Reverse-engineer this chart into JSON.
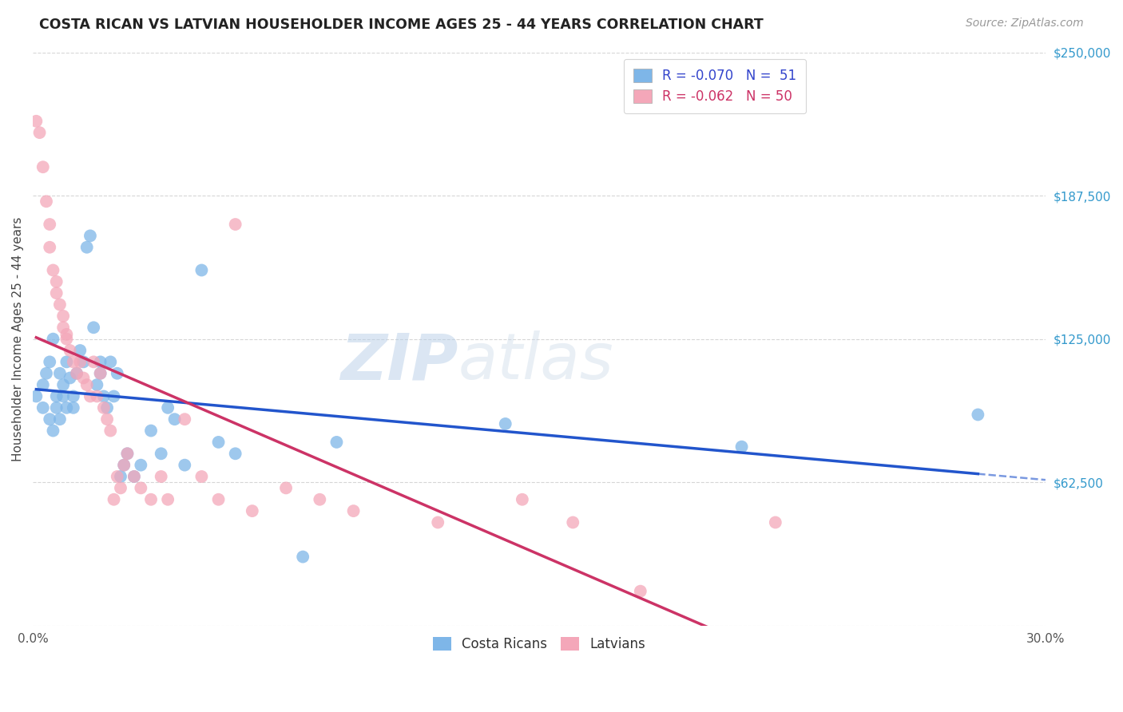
{
  "title": "COSTA RICAN VS LATVIAN HOUSEHOLDER INCOME AGES 25 - 44 YEARS CORRELATION CHART",
  "source": "Source: ZipAtlas.com",
  "ylabel": "Householder Income Ages 25 - 44 years",
  "xlim": [
    0.0,
    0.3
  ],
  "ylim": [
    0,
    250000
  ],
  "yticks": [
    0,
    62500,
    125000,
    187500,
    250000
  ],
  "ytick_labels": [
    "",
    "$62,500",
    "$125,000",
    "$187,500",
    "$250,000"
  ],
  "xticks": [
    0.0,
    0.05,
    0.1,
    0.15,
    0.2,
    0.25,
    0.3
  ],
  "xtick_labels": [
    "0.0%",
    "",
    "",
    "",
    "",
    "",
    "30.0%"
  ],
  "background_color": "#ffffff",
  "grid_color": "#cccccc",
  "costa_rican_color": "#7eb6e8",
  "latvian_color": "#f4a7b9",
  "costa_rican_line_color": "#2255cc",
  "latvian_line_color": "#cc3366",
  "legend_r_costa": "R = -0.070",
  "legend_n_costa": "N =  51",
  "legend_r_latvian": "R = -0.062",
  "legend_n_latvian": "N = 50",
  "watermark_zip": "ZIP",
  "watermark_atlas": "atlas",
  "costa_rican_x": [
    0.001,
    0.003,
    0.003,
    0.004,
    0.005,
    0.005,
    0.006,
    0.006,
    0.007,
    0.007,
    0.008,
    0.008,
    0.009,
    0.009,
    0.01,
    0.01,
    0.011,
    0.012,
    0.012,
    0.013,
    0.014,
    0.015,
    0.016,
    0.017,
    0.018,
    0.019,
    0.02,
    0.02,
    0.021,
    0.022,
    0.023,
    0.024,
    0.025,
    0.026,
    0.027,
    0.028,
    0.03,
    0.032,
    0.035,
    0.038,
    0.04,
    0.042,
    0.045,
    0.05,
    0.055,
    0.06,
    0.08,
    0.09,
    0.14,
    0.21,
    0.28
  ],
  "costa_rican_y": [
    100000,
    95000,
    105000,
    110000,
    90000,
    115000,
    85000,
    125000,
    95000,
    100000,
    90000,
    110000,
    100000,
    105000,
    95000,
    115000,
    108000,
    100000,
    95000,
    110000,
    120000,
    115000,
    165000,
    170000,
    130000,
    105000,
    110000,
    115000,
    100000,
    95000,
    115000,
    100000,
    110000,
    65000,
    70000,
    75000,
    65000,
    70000,
    85000,
    75000,
    95000,
    90000,
    70000,
    155000,
    80000,
    75000,
    30000,
    80000,
    88000,
    78000,
    92000
  ],
  "latvian_x": [
    0.001,
    0.002,
    0.003,
    0.004,
    0.005,
    0.005,
    0.006,
    0.007,
    0.007,
    0.008,
    0.009,
    0.009,
    0.01,
    0.01,
    0.011,
    0.012,
    0.013,
    0.014,
    0.015,
    0.016,
    0.017,
    0.018,
    0.019,
    0.02,
    0.021,
    0.022,
    0.023,
    0.024,
    0.025,
    0.026,
    0.027,
    0.028,
    0.03,
    0.032,
    0.035,
    0.038,
    0.04,
    0.045,
    0.05,
    0.055,
    0.065,
    0.075,
    0.085,
    0.095,
    0.12,
    0.145,
    0.16,
    0.18,
    0.22,
    0.06
  ],
  "latvian_y": [
    220000,
    215000,
    200000,
    185000,
    175000,
    165000,
    155000,
    150000,
    145000,
    140000,
    135000,
    130000,
    127000,
    125000,
    120000,
    115000,
    110000,
    115000,
    108000,
    105000,
    100000,
    115000,
    100000,
    110000,
    95000,
    90000,
    85000,
    55000,
    65000,
    60000,
    70000,
    75000,
    65000,
    60000,
    55000,
    65000,
    55000,
    90000,
    65000,
    55000,
    50000,
    60000,
    55000,
    50000,
    45000,
    55000,
    45000,
    15000,
    45000,
    175000
  ]
}
